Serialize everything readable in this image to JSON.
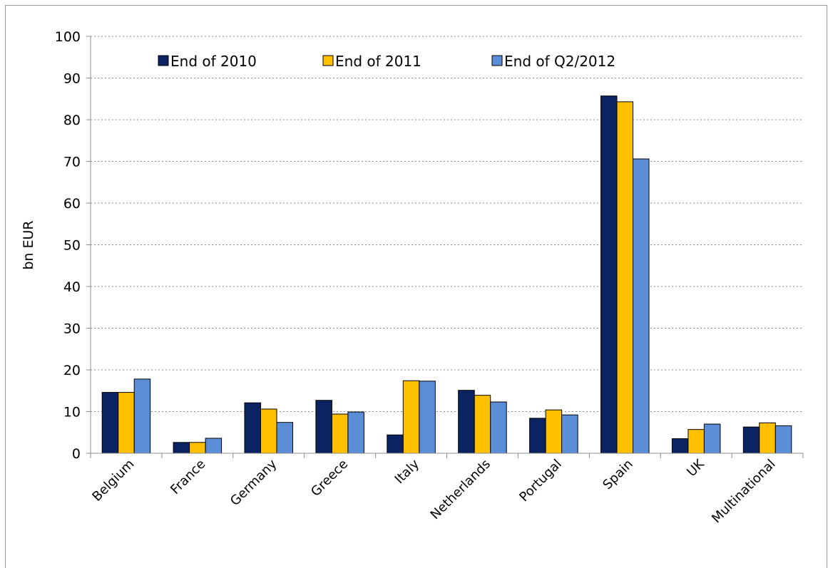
{
  "chart_data": {
    "type": "bar",
    "title": "",
    "xlabel": "",
    "ylabel": "bn EUR",
    "ylim": [
      0,
      100
    ],
    "yticks": [
      0,
      10,
      20,
      30,
      40,
      50,
      60,
      70,
      80,
      90,
      100
    ],
    "grid": true,
    "legend_position": "top",
    "categories": [
      "Belgium",
      "France",
      "Germany",
      "Greece",
      "Italy",
      "Netherlands",
      "Portugal",
      "Spain",
      "UK",
      "Multinational"
    ],
    "series": [
      {
        "name": "End of 2010",
        "color": "#0b2360",
        "values": [
          14.6,
          2.6,
          12.1,
          12.7,
          4.4,
          15.1,
          8.4,
          85.7,
          3.5,
          6.3
        ]
      },
      {
        "name": "End of 2011",
        "color": "#ffc000",
        "values": [
          14.6,
          2.6,
          10.6,
          9.4,
          17.4,
          13.9,
          10.4,
          84.3,
          5.7,
          7.3
        ]
      },
      {
        "name": "End of Q2/2012",
        "color": "#5b8ed7",
        "values": [
          17.8,
          3.6,
          7.4,
          9.9,
          17.3,
          12.3,
          9.2,
          70.6,
          7.0,
          6.6
        ]
      }
    ]
  }
}
